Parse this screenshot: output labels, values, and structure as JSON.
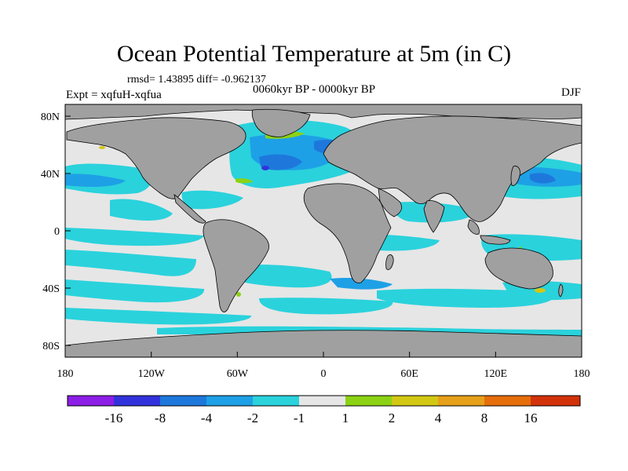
{
  "title": "Ocean Potential Temperature at 5m (in C)",
  "stats": "rmsd= 1.43895 diff= -0.962137",
  "experiment": "Expt = xqfuH-xqfua",
  "period": "0060kyr BP - 0000kyr BP",
  "season": "DJF",
  "lon_ticks": [
    "180",
    "120W",
    "60W",
    "0",
    "60E",
    "120E",
    "180"
  ],
  "lat_ticks": [
    "80N",
    "40N",
    "0",
    "40S",
    "80S"
  ],
  "colorbar": {
    "colors": [
      "#8c1ee6",
      "#3232dc",
      "#1e78dc",
      "#1ea0e6",
      "#2ad2dc",
      "#e6e6e6",
      "#8cd214",
      "#d2c814",
      "#e6a019",
      "#e66e0a",
      "#d2320a"
    ],
    "labels": [
      "-16",
      "-8",
      "-4",
      "-2",
      "-1",
      "1",
      "2",
      "4",
      "8",
      "16"
    ]
  },
  "colors": {
    "land": "#a0a0a0",
    "ocean_neutral": "#e6e6e6",
    "coast": "#000000"
  }
}
